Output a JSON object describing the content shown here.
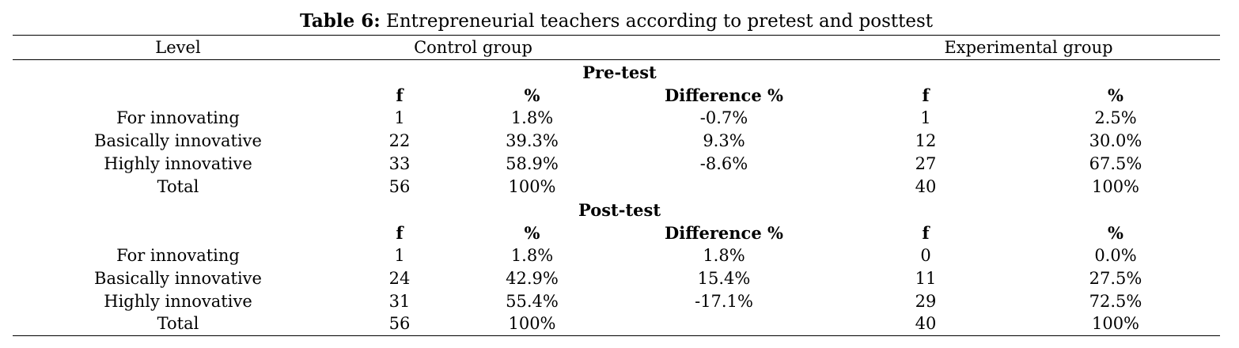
{
  "caption": {
    "label": "Table 6:",
    "text": " Entrepreneurial teachers according to pretest and posttest"
  },
  "header": {
    "level": "Level",
    "control": "Control group",
    "experimental": "Experimental group"
  },
  "sections": [
    {
      "title": "Pre-test",
      "columns": [
        "f",
        "%",
        "Difference %",
        "f",
        "%"
      ],
      "rows": [
        [
          "For innovating",
          "1",
          "1.8%",
          "-0.7%",
          "1",
          "2.5%"
        ],
        [
          "Basically innovative",
          "22",
          "39.3%",
          "9.3%",
          "12",
          "30.0%"
        ],
        [
          "Highly innovative",
          "33",
          "58.9%",
          "-8.6%",
          "27",
          "67.5%"
        ],
        [
          "Total",
          "56",
          "100%",
          "",
          "40",
          "100%"
        ]
      ]
    },
    {
      "title": "Post-test",
      "columns": [
        "f",
        "%",
        "Difference %",
        "f",
        "%"
      ],
      "rows": [
        [
          "For innovating",
          "1",
          "1.8%",
          "1.8%",
          "0",
          "0.0%"
        ],
        [
          "Basically innovative",
          "24",
          "42.9%",
          "15.4%",
          "11",
          "27.5%"
        ],
        [
          "Highly innovative",
          "31",
          "55.4%",
          "-17.1%",
          "29",
          "72.5%"
        ],
        [
          "Total",
          "56",
          "100%",
          "",
          "40",
          "100%"
        ]
      ]
    }
  ]
}
